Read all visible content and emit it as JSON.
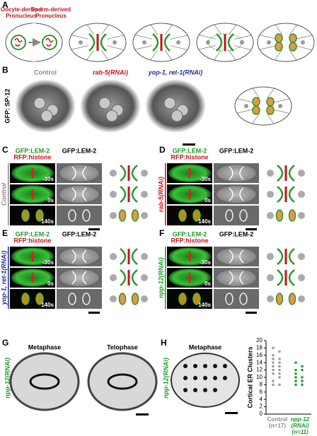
{
  "figure": {
    "A": {
      "label": "A",
      "oocyte": [
        "Oocyte-derived",
        "Pronucleus"
      ],
      "sperm": [
        "Sperm-derived",
        "Pronucleus"
      ]
    },
    "B": {
      "label": "B",
      "channel": "GFP: SP-12",
      "conditions": [
        {
          "text": "Control",
          "color": "#8a8a8a"
        },
        {
          "text": "rab-5(RNAi)",
          "color": "#c0141c"
        },
        {
          "text": "yop-1, ret-1(RNAi)",
          "color": "#1f2f8f"
        }
      ]
    },
    "imaging": [
      {
        "label": "C",
        "condition": "Control",
        "color": "#8a8a8a",
        "channels": [
          "GFP:LEM-2",
          "RFP:histone",
          "GFP:LEM-2"
        ],
        "times": [
          "-30s",
          "0s",
          "140s"
        ]
      },
      {
        "label": "D",
        "condition": "rab-5(RNAi)",
        "color": "#c0141c",
        "channels": [
          "GFP:LEM-2",
          "RFP:histone",
          "GFP:LEM-2"
        ],
        "times": [
          "-30s",
          "0s",
          "140s"
        ]
      },
      {
        "label": "E",
        "condition": "yop-1, ret-1(RNAi)",
        "color": "#1f2f8f",
        "channels": [
          "GFP:LEM-2",
          "RFP:histone",
          "GFP:LEM-2"
        ],
        "times": [
          "-30s",
          "0s",
          "140s"
        ]
      },
      {
        "label": "F",
        "condition": "npp-12(RNAi)",
        "color": "#1e9a2a",
        "channels": [
          "GFP:LEM-2",
          "RFP:histone",
          "GFP:LEM-2"
        ],
        "times": [
          "-30s",
          "0s",
          "140s"
        ]
      }
    ],
    "G": {
      "label": "G",
      "condition": "npp-12(RNAi)",
      "color": "#1e9a2a",
      "stages": [
        "Metaphase",
        "Telophase"
      ]
    },
    "H": {
      "label": "H",
      "condition": "npp-12(RNAi)",
      "color": "#1e9a2a",
      "stage": "Metaphase"
    }
  },
  "chart_data": {
    "type": "strip",
    "ylabel": "Cortical ER Clusters",
    "categories": [
      [
        "Control",
        "(n=17)"
      ],
      [
        "npp-12",
        "(RNAi)",
        "(n=11)"
      ]
    ],
    "category_colors": [
      "#8a8a8a",
      "#1e9a2a"
    ],
    "series": [
      {
        "color": "#9a9a9a",
        "values": [
          18,
          17,
          16,
          15,
          15,
          14,
          14,
          13,
          13,
          12,
          12,
          11,
          11,
          10,
          9,
          8,
          8
        ]
      },
      {
        "color": "#1e9a2a",
        "values": [
          14,
          13,
          12,
          12,
          11,
          10,
          10,
          9,
          9,
          8,
          8
        ]
      }
    ],
    "ylim": [
      0,
      20
    ],
    "yticks": [
      0,
      2,
      4,
      6,
      8,
      10,
      12,
      14,
      16,
      18,
      20
    ]
  }
}
